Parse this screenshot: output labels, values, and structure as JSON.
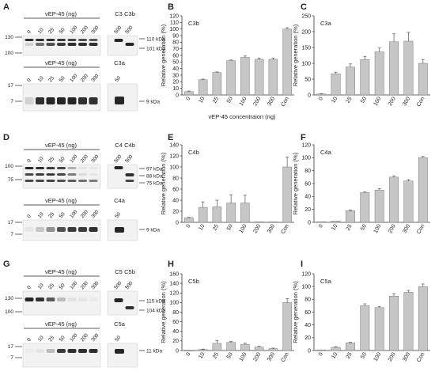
{
  "panel_letters": [
    "A",
    "B",
    "C",
    "D",
    "E",
    "F",
    "G",
    "H",
    "I"
  ],
  "blots": {
    "A_top": {
      "header": "vEP-45 (ng)",
      "lanes": [
        "0",
        "10",
        "25",
        "50",
        "100",
        "200",
        "300"
      ],
      "ctrl_labels": [
        "C3",
        "C3b"
      ],
      "ctrl_lanes": [
        "500",
        "500"
      ],
      "markers": [
        "130",
        "100"
      ],
      "sizes": [
        "110 kDa",
        "101 kDa"
      ]
    },
    "A_bot": {
      "header": "vEP-45 (ng)",
      "lanes": [
        "0",
        "10",
        "25",
        "50",
        "100",
        "200",
        "300"
      ],
      "ctrl_labels": [
        "C3a"
      ],
      "ctrl_lanes": [
        "50"
      ],
      "markers": [
        "17",
        "7"
      ],
      "sizes": [
        "9 kDa"
      ]
    },
    "D_top": {
      "header": "vEP-45 (ng)",
      "lanes": [
        "0",
        "10",
        "25",
        "50",
        "100",
        "200",
        "300"
      ],
      "ctrl_labels": [
        "C4",
        "C4b"
      ],
      "ctrl_lanes": [
        "500",
        "500"
      ],
      "markers": [
        "100",
        "75"
      ],
      "sizes": [
        "97 kDa",
        "88 kDa",
        "75 kDa"
      ]
    },
    "D_bot": {
      "header": "vEP-45 (ng)",
      "lanes": [
        "0",
        "10",
        "25",
        "50",
        "100",
        "200",
        "300"
      ],
      "ctrl_labels": [
        "C4a"
      ],
      "ctrl_lanes": [
        "50"
      ],
      "markers": [
        "17",
        "7"
      ],
      "sizes": [
        "9 kDa"
      ]
    },
    "G_top": {
      "header": "vEP-45 (ng)",
      "lanes": [
        "0",
        "10",
        "25",
        "50",
        "100",
        "200",
        "300"
      ],
      "ctrl_labels": [
        "C5",
        "C5b"
      ],
      "ctrl_lanes": [
        "500",
        "500"
      ],
      "markers": [
        "130",
        "100"
      ],
      "sizes": [
        "115 kDa",
        "104 kDa"
      ]
    },
    "G_bot": {
      "header": "vEP-45 (ng)",
      "lanes": [
        "0",
        "10",
        "25",
        "50",
        "100",
        "200",
        "300"
      ],
      "ctrl_labels": [
        "C5a"
      ],
      "ctrl_lanes": [
        "50"
      ],
      "markers": [
        "17",
        "7"
      ],
      "sizes": [
        "11 kDa"
      ]
    }
  },
  "chart_data": [
    {
      "panel": "B",
      "type": "bar",
      "inset": "C3b",
      "categories": [
        "0",
        "10",
        "25",
        "50",
        "100",
        "200",
        "300",
        "Con"
      ],
      "values": [
        5,
        23,
        34,
        52,
        57,
        54,
        54,
        100
      ],
      "errors": [
        1,
        1,
        1,
        1,
        2,
        2,
        2,
        2
      ],
      "ylabel": "Relative generation (%)",
      "xlabel": "vEP-45 concentraion (ng)",
      "ylim": [
        0,
        120
      ],
      "yticks": [
        0,
        10,
        20,
        30,
        40,
        50,
        60,
        70,
        80,
        90,
        100,
        110,
        120
      ]
    },
    {
      "panel": "C",
      "type": "bar",
      "inset": "C3a",
      "categories": [
        "0",
        "10",
        "25",
        "50",
        "100",
        "200",
        "300",
        "Con"
      ],
      "values": [
        3,
        67,
        88,
        112,
        136,
        168,
        170,
        100
      ],
      "errors": [
        1,
        5,
        10,
        10,
        12,
        25,
        28,
        12
      ],
      "ylabel": "Relative generation (%)",
      "xlabel": "",
      "ylim": [
        0,
        250
      ],
      "yticks": [
        0,
        50,
        100,
        150,
        200,
        250
      ]
    },
    {
      "panel": "E",
      "type": "bar",
      "inset": "C4b",
      "categories": [
        "0",
        "10",
        "25",
        "50",
        "100",
        "200",
        "300",
        "Con"
      ],
      "values": [
        8,
        27,
        28,
        35,
        35,
        1,
        1,
        100
      ],
      "errors": [
        1,
        10,
        12,
        15,
        14,
        0,
        0,
        18
      ],
      "ylabel": "Relative generation (%)",
      "xlabel": "",
      "ylim": [
        0,
        140
      ],
      "yticks": [
        0,
        20,
        40,
        60,
        80,
        100,
        120,
        140
      ]
    },
    {
      "panel": "F",
      "type": "bar",
      "inset": "C4a",
      "categories": [
        "0",
        "10",
        "25",
        "50",
        "100",
        "200",
        "300",
        "Con"
      ],
      "values": [
        1,
        2,
        18,
        46,
        50,
        70,
        64,
        100
      ],
      "errors": [
        0,
        0,
        1,
        1,
        2,
        2,
        2,
        2
      ],
      "ylabel": "Relative generation (%)",
      "xlabel": "",
      "ylim": [
        0,
        120
      ],
      "yticks": [
        0,
        20,
        40,
        60,
        80,
        100,
        120
      ]
    },
    {
      "panel": "H",
      "type": "bar",
      "inset": "C5b",
      "categories": [
        "0",
        "10",
        "25",
        "50",
        "100",
        "200",
        "300",
        "Con"
      ],
      "values": [
        0,
        2,
        15,
        17,
        13,
        7,
        4,
        100
      ],
      "errors": [
        0,
        1,
        6,
        2,
        2,
        2,
        1,
        8
      ],
      "ylabel": "Relative generation (%)",
      "xlabel": "",
      "ylim": [
        0,
        160
      ],
      "yticks": [
        0,
        20,
        40,
        60,
        80,
        100,
        120,
        140,
        160
      ]
    },
    {
      "panel": "I",
      "type": "bar",
      "inset": "C5a",
      "categories": [
        "0",
        "10",
        "25",
        "50",
        "100",
        "200",
        "300",
        "Con"
      ],
      "values": [
        1,
        5,
        12,
        70,
        67,
        85,
        91,
        100
      ],
      "errors": [
        0,
        1,
        1,
        3,
        2,
        4,
        3,
        4
      ],
      "ylabel": "Relative generation (%)",
      "xlabel": "",
      "ylim": [
        0,
        120
      ],
      "yticks": [
        0,
        20,
        40,
        60,
        80,
        100,
        120
      ]
    }
  ],
  "colors": {
    "bar": "#c6c6c6",
    "bar_stroke": "#777777",
    "axis": "#333333",
    "band": "#1a1a1a"
  }
}
